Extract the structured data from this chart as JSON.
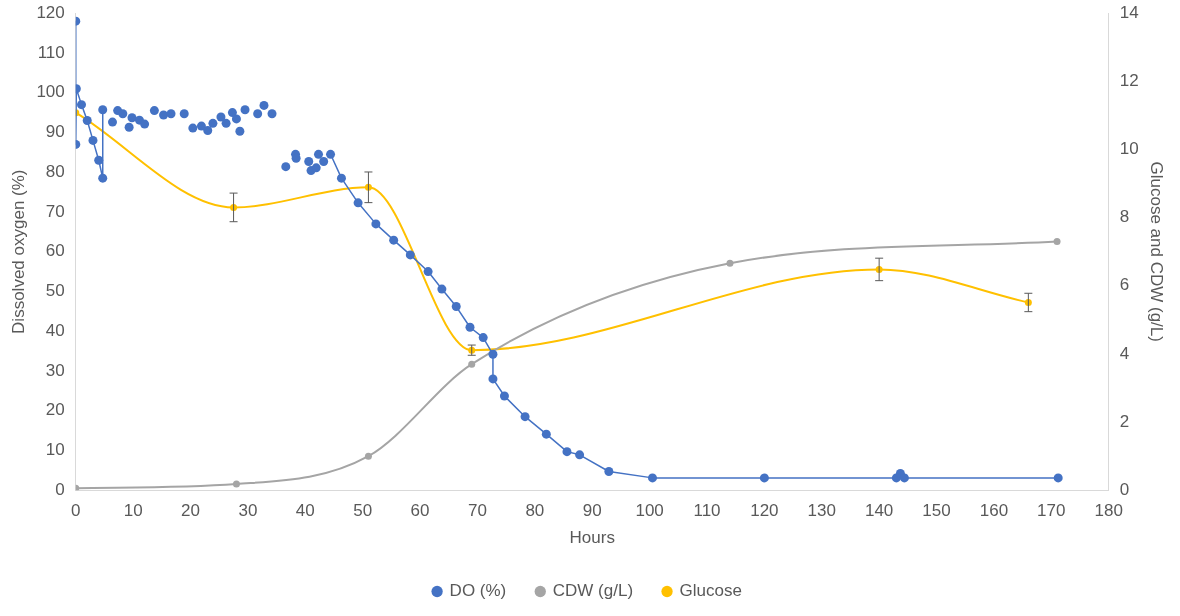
{
  "chart_data": {
    "type": "line",
    "xlabel": "Hours",
    "ylabel": "Dissolved oxygen (%)",
    "y2label": "Glucose and CDW (g/L)",
    "xlim": [
      0,
      180
    ],
    "xticks": [
      0,
      10,
      20,
      30,
      40,
      50,
      60,
      70,
      80,
      90,
      100,
      110,
      120,
      130,
      140,
      150,
      160,
      170,
      180
    ],
    "ylim": [
      0,
      120
    ],
    "yticks": [
      0,
      10,
      20,
      30,
      40,
      50,
      60,
      70,
      80,
      90,
      100,
      110,
      120
    ],
    "y2lim": [
      0,
      14
    ],
    "y2ticks": [
      0,
      2,
      4,
      6,
      8,
      10,
      12,
      14
    ],
    "legend": "bottom",
    "marker": "circle",
    "line_style": "solid",
    "series": [
      {
        "name": "DO (%)",
        "color": "#4472c4",
        "x": [
          0,
          0,
          0.1,
          1,
          2,
          3,
          4,
          4.7,
          4.7,
          5,
          6.4,
          6.6,
          7.3,
          7.6,
          8.2,
          8.6,
          9.3,
          9.5,
          9.8,
          10.3,
          11.1,
          11.5,
          12,
          12.8,
          13.7,
          14.5,
          15.3,
          16,
          16.6,
          17.7,
          18.9,
          19.6,
          20.4,
          21.1,
          21.9,
          22.4,
          23,
          23.4,
          23.9,
          24.6,
          25.3,
          25.7,
          26.2,
          26.7,
          27.3,
          27.6,
          28,
          28.3,
          28.6,
          29,
          29.5,
          30.6,
          31.7,
          32.2,
          32.8,
          33.5,
          34.2,
          35.4,
          36.6,
          37.4,
          38.3,
          38.35,
          38.4,
          39.5,
          40.6,
          40.8,
          41,
          41.4,
          41.9,
          42.1,
          42.3,
          42.7,
          43.2,
          43.8,
          44.4,
          46.3,
          49.2,
          52.3,
          55.4,
          58.3,
          61.4,
          63.8,
          66.3,
          68.7,
          71,
          72.7,
          72.7,
          74.7,
          78.3,
          82,
          85.6,
          87.8,
          92.9,
          100.5,
          120,
          143,
          143.7,
          144.4,
          171.2
        ],
        "values": [
          118,
          87,
          101,
          97,
          93,
          88,
          83,
          78.5,
          95.7,
          null,
          92.6,
          null,
          95.5,
          null,
          94.7,
          null,
          91.3,
          null,
          93.7,
          null,
          93.1,
          null,
          92.1,
          null,
          95.5,
          null,
          94.4,
          null,
          94.7,
          null,
          94.7,
          null,
          91.1,
          null,
          91.6,
          null,
          90.5,
          null,
          92.3,
          null,
          93.9,
          null,
          92.3,
          null,
          95,
          null,
          93.4,
          null,
          90.3,
          null,
          95.7,
          null,
          94.7,
          null,
          96.8,
          null,
          94.7,
          null,
          81.4,
          null,
          84.5,
          null,
          83.5,
          null,
          82.7,
          null,
          80.4,
          null,
          81.1,
          null,
          84.5,
          null,
          82.7,
          null,
          84.5,
          78.5,
          72.3,
          67,
          62.9,
          59.2,
          55,
          50.6,
          46.2,
          41,
          38.4,
          34.2,
          28,
          23.7,
          18.5,
          14.1,
          9.7,
          8.9,
          4.7,
          3.1,
          3.1,
          3.1,
          4.2,
          3.1,
          3.1
        ]
      },
      {
        "name": "CDW (g/L)",
        "color": "#a5a5a5",
        "axis": "y2",
        "x": [
          0,
          28,
          51,
          69,
          114,
          171
        ],
        "values": [
          0.06,
          0.18,
          1.0,
          3.7,
          6.66,
          7.3
        ]
      },
      {
        "name": "Glucose",
        "color": "#ffc000",
        "axis": "y2",
        "x": [
          0,
          27.5,
          51,
          69,
          140,
          166
        ],
        "values": [
          11.08,
          8.3,
          8.89,
          4.11,
          6.48,
          5.51
        ],
        "errors": [
          null,
          0.42,
          0.45,
          0.15,
          0.33,
          0.27
        ]
      }
    ]
  }
}
